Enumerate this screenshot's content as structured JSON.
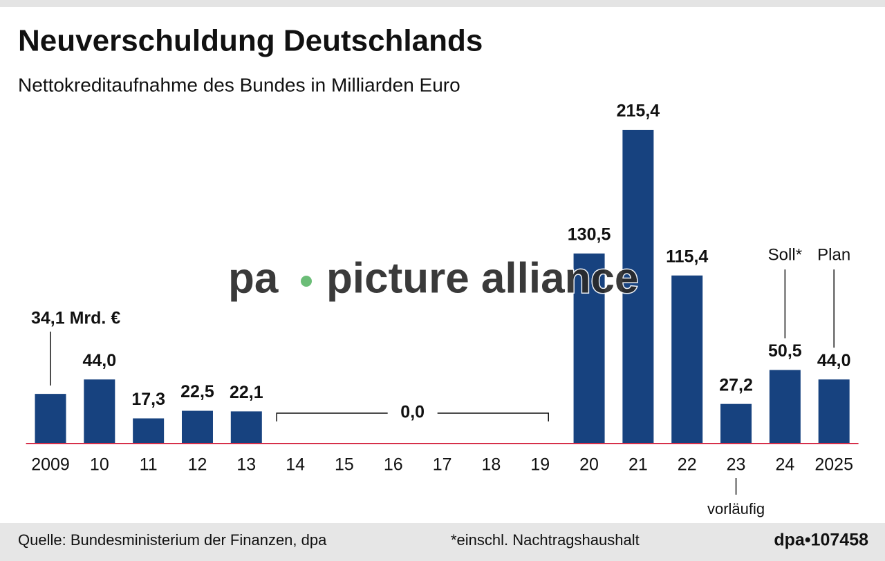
{
  "chart_data": {
    "type": "bar",
    "title": "Neuverschuldung Deutschlands",
    "subtitle": "Nettokreditaufnahme des Bundes in Milliarden Euro",
    "categories": [
      "2009",
      "10",
      "11",
      "12",
      "13",
      "14",
      "15",
      "16",
      "17",
      "18",
      "19",
      "20",
      "21",
      "22",
      "23",
      "24",
      "2025"
    ],
    "values": [
      34.1,
      44.0,
      17.3,
      22.5,
      22.1,
      0,
      0,
      0,
      0,
      0,
      0,
      130.5,
      215.4,
      115.4,
      27.2,
      50.5,
      44.0
    ],
    "value_labels": [
      "34,1 Mrd. €",
      "44,0",
      "17,3",
      "22,5",
      "22,1",
      null,
      null,
      null,
      null,
      null,
      null,
      "130,5",
      "215,4",
      "115,4",
      "27,2",
      "50,5",
      "44,0"
    ],
    "color": "#17427f",
    "baseline_color": "#d6304a",
    "ylim": [
      0,
      250
    ],
    "bracket": {
      "text": "0,0",
      "from": "14",
      "to": "19"
    },
    "annotations": [
      {
        "text": "Soll*",
        "category": "24",
        "position": "above"
      },
      {
        "text": "Plan",
        "category": "2025",
        "position": "above"
      },
      {
        "text": "vorläufig",
        "category": "23",
        "position": "below"
      }
    ],
    "watermark": [
      "pa",
      "picture alliance"
    ],
    "source": "Quelle: Bundesministerium der Finanzen, dpa",
    "footnote": "*einschl. Nachtragshaushalt",
    "credit": "dpa•107458"
  }
}
